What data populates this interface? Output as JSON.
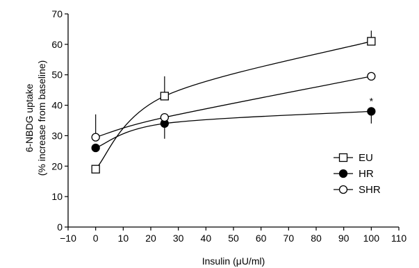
{
  "chart_data": {
    "type": "line",
    "title": "",
    "xlabel": "Insulin (μU/ml)",
    "ylabel": "6-NBDG uptake",
    "ylabel_line2": "(% increase from baseline)",
    "xlim": [
      -10,
      110
    ],
    "ylim": [
      0,
      70
    ],
    "xticks": [
      -10,
      0,
      10,
      20,
      30,
      40,
      50,
      60,
      70,
      80,
      90,
      100,
      110
    ],
    "yticks": [
      0,
      10,
      20,
      30,
      40,
      50,
      60,
      70
    ],
    "grid": false,
    "legend_position": "right",
    "x": [
      0,
      25,
      100
    ],
    "series": [
      {
        "name": "EU",
        "marker": "open-square",
        "values": [
          19,
          43,
          61
        ],
        "error_up": [
          0,
          6.5,
          3.5
        ],
        "error_down": [
          0,
          0,
          0
        ]
      },
      {
        "name": "HR",
        "marker": "filled-circle",
        "values": [
          26,
          34,
          38
        ],
        "error_up": [
          0,
          0,
          0
        ],
        "error_down": [
          0,
          5,
          4
        ]
      },
      {
        "name": "SHR",
        "marker": "open-circle",
        "values": [
          29.5,
          36,
          49.5
        ],
        "error_up": [
          7.5,
          0,
          0
        ],
        "error_down": [
          0,
          0,
          0
        ]
      }
    ],
    "annotations": [
      {
        "text": "*",
        "x": 100,
        "y": 38
      }
    ]
  }
}
